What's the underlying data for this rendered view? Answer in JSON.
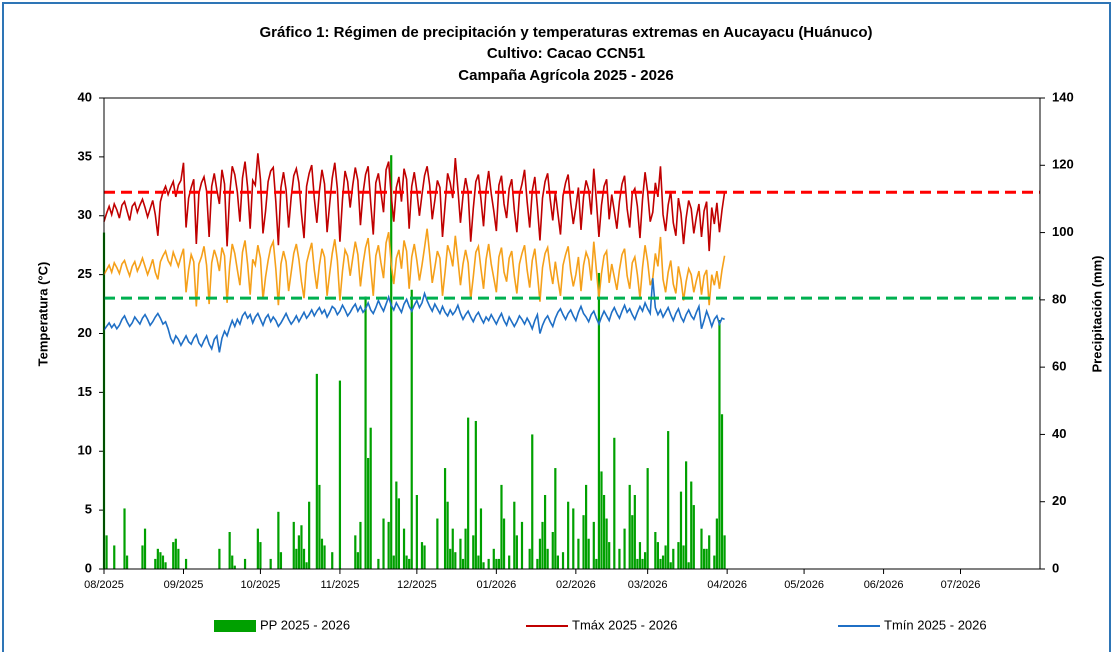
{
  "chart_data": {
    "type": "line",
    "title": [
      "Gráfico 1: Régimen de precipitación y temperaturas extremas en Aucayacu (Huánuco)",
      "Cultivo: Cacao CCN51",
      "Campaña Agrícola 2025 - 2026"
    ],
    "y_label": "Temperatura (°C)",
    "y2_label": "Precipitación (mm)",
    "xlim": [
      0,
      365
    ],
    "xticks": [
      {
        "value": 0,
        "label": "08/2025"
      },
      {
        "value": 31,
        "label": "09/2025"
      },
      {
        "value": 61,
        "label": "10/2025"
      },
      {
        "value": 92,
        "label": "11/2025"
      },
      {
        "value": 122,
        "label": "12/2025"
      },
      {
        "value": 153,
        "label": "01/2026"
      },
      {
        "value": 184,
        "label": "02/2026"
      },
      {
        "value": 212,
        "label": "03/2026"
      },
      {
        "value": 243,
        "label": "04/2026"
      },
      {
        "value": 273,
        "label": "05/2026"
      },
      {
        "value": 304,
        "label": "06/2026"
      },
      {
        "value": 334,
        "label": "07/2026"
      }
    ],
    "ylim": [
      0,
      40
    ],
    "yticks": [
      0,
      5,
      10,
      15,
      20,
      25,
      30,
      35,
      40
    ],
    "y2lim": [
      0,
      140
    ],
    "y2ticks": [
      0,
      20,
      40,
      60,
      80,
      100,
      120,
      140
    ],
    "legend": "bottom",
    "reference_lines": [
      {
        "value": 32,
        "color": "#ff0000"
      },
      {
        "value": 23,
        "color": "#00b050"
      }
    ],
    "x": [
      0,
      1,
      2,
      3,
      4,
      5,
      6,
      7,
      8,
      9,
      10,
      11,
      12,
      13,
      14,
      15,
      16,
      17,
      18,
      19,
      20,
      21,
      22,
      23,
      24,
      25,
      26,
      27,
      28,
      29,
      30,
      31,
      32,
      33,
      34,
      35,
      36,
      37,
      38,
      39,
      40,
      41,
      42,
      43,
      44,
      45,
      46,
      47,
      48,
      49,
      50,
      51,
      52,
      53,
      54,
      55,
      56,
      57,
      58,
      59,
      60,
      61,
      62,
      63,
      64,
      65,
      66,
      67,
      68,
      69,
      70,
      71,
      72,
      73,
      74,
      75,
      76,
      77,
      78,
      79,
      80,
      81,
      82,
      83,
      84,
      85,
      86,
      87,
      88,
      89,
      90,
      91,
      92,
      93,
      94,
      95,
      96,
      97,
      98,
      99,
      100,
      101,
      102,
      103,
      104,
      105,
      106,
      107,
      108,
      109,
      110,
      111,
      112,
      113,
      114,
      115,
      116,
      117,
      118,
      119,
      120,
      121,
      122,
      123,
      124,
      125,
      126,
      127,
      128,
      129,
      130,
      131,
      132,
      133,
      134,
      135,
      136,
      137,
      138,
      139,
      140,
      141,
      142,
      143,
      144,
      145,
      146,
      147,
      148,
      149,
      150,
      151,
      152,
      153,
      154,
      155,
      156,
      157,
      158,
      159,
      160,
      161,
      162,
      163,
      164,
      165,
      166,
      167,
      168,
      169,
      170,
      171,
      172,
      173,
      174,
      175,
      176,
      177,
      178,
      179,
      180,
      181,
      182,
      183,
      184,
      185,
      186,
      187,
      188,
      189,
      190,
      191,
      192,
      193,
      194,
      195,
      196,
      197,
      198,
      199,
      200,
      201,
      202,
      203,
      204,
      205,
      206,
      207,
      208,
      209,
      210,
      211,
      212,
      213,
      214,
      215,
      216,
      217,
      218,
      219,
      220,
      221,
      222,
      223,
      224,
      225,
      226,
      227,
      228,
      229,
      230,
      231,
      232,
      233,
      234,
      235,
      236,
      237,
      238,
      239,
      240,
      241,
      242
    ],
    "series": [
      {
        "name": "PP 2025 - 2026",
        "type": "bar",
        "axis": "y2",
        "color": "#00a000",
        "values": [
          100,
          10,
          0,
          0,
          7,
          0,
          0,
          0,
          18,
          4,
          0,
          0,
          0,
          0,
          0,
          7,
          12,
          0,
          0,
          0,
          3,
          6,
          5,
          4,
          2,
          0,
          0,
          8,
          9,
          6,
          0,
          0,
          3,
          0,
          0,
          0,
          0,
          0,
          0,
          0,
          0,
          0,
          0,
          0,
          0,
          6,
          0,
          0,
          0,
          11,
          4,
          1,
          0,
          0,
          0,
          3,
          0,
          0,
          0,
          0,
          12,
          8,
          0,
          0,
          0,
          3,
          0,
          0,
          17,
          5,
          0,
          0,
          0,
          0,
          14,
          6,
          10,
          13,
          6,
          2,
          20,
          0,
          0,
          58,
          25,
          9,
          7,
          0,
          0,
          5,
          0,
          0,
          56,
          0,
          0,
          0,
          0,
          0,
          10,
          5,
          14,
          0,
          81,
          33,
          42,
          0,
          0,
          3,
          0,
          15,
          0,
          14,
          123,
          4,
          26,
          21,
          0,
          12,
          4,
          3,
          83,
          0,
          22,
          0,
          8,
          7,
          0,
          0,
          0,
          0,
          15,
          0,
          0,
          30,
          20,
          6,
          12,
          5,
          0,
          9,
          3,
          12,
          45,
          0,
          10,
          44,
          4,
          18,
          2,
          0,
          3,
          0,
          6,
          3,
          3,
          25,
          15,
          0,
          4,
          0,
          20,
          10,
          0,
          14,
          0,
          0,
          6,
          40,
          0,
          3,
          9,
          14,
          22,
          6,
          0,
          11,
          30,
          4,
          0,
          5,
          0,
          20,
          0,
          18,
          0,
          9,
          0,
          16,
          25,
          9,
          0,
          14,
          3,
          88,
          29,
          22,
          15,
          8,
          0,
          39,
          0,
          6,
          0,
          12,
          0,
          25,
          16,
          22,
          3,
          8,
          3,
          5,
          30,
          0,
          0,
          11,
          8,
          3,
          4,
          7,
          41,
          2,
          6,
          0,
          8,
          23,
          7,
          32,
          2,
          26,
          19,
          0,
          0,
          12,
          6,
          6,
          10,
          0,
          4,
          15,
          74,
          46,
          10
        ]
      },
      {
        "name": "Tmáx 2025 - 2026",
        "type": "line",
        "color": "#c00000",
        "values": [
          29.5,
          30.2,
          30.8,
          30.1,
          31.0,
          30.5,
          29.8,
          30.9,
          31.2,
          30.4,
          29.6,
          30.8,
          31.1,
          30.3,
          30.9,
          31.4,
          30.7,
          29.9,
          30.6,
          31.3,
          30.1,
          28.3,
          31.2,
          32.0,
          32.5,
          31.8,
          32.4,
          32.9,
          31.6,
          32.6,
          33.0,
          34.5,
          29.0,
          31.5,
          32.4,
          33.1,
          27.6,
          31.9,
          32.8,
          33.3,
          32.1,
          28.2,
          32.5,
          33.6,
          32.2,
          31.0,
          33.9,
          32.7,
          27.4,
          31.8,
          34.2,
          33.5,
          32.0,
          29.5,
          33.2,
          34.6,
          32.4,
          28.9,
          33.0,
          32.6,
          35.3,
          33.1,
          28.5,
          30.4,
          32.9,
          33.8,
          34.1,
          31.2,
          27.5,
          32.4,
          33.7,
          32.2,
          29.0,
          31.6,
          33.4,
          34.0,
          32.8,
          30.2,
          28.1,
          32.5,
          33.6,
          34.3,
          31.5,
          29.4,
          32.1,
          33.9,
          32.7,
          28.6,
          31.0,
          33.2,
          34.5,
          32.3,
          27.8,
          31.4,
          33.8,
          32.9,
          30.7,
          32.6,
          34.1,
          33.0,
          29.2,
          31.9,
          33.5,
          34.2,
          31.1,
          28.4,
          32.8,
          33.6,
          32.0,
          30.3,
          33.9,
          34.6,
          31.7,
          29.5,
          32.4,
          33.3,
          31.2,
          34.0,
          33.1,
          28.9,
          32.5,
          33.7,
          32.1,
          30.0,
          31.8,
          33.4,
          34.2,
          32.6,
          29.7,
          31.3,
          33.0,
          32.4,
          28.2,
          30.9,
          33.6,
          32.8,
          31.5,
          34.9,
          32.3,
          29.4,
          31.7,
          33.2,
          32.0,
          27.8,
          30.6,
          32.9,
          33.5,
          31.4,
          29.1,
          32.2,
          33.8,
          31.9,
          30.4,
          28.7,
          32.6,
          33.4,
          31.0,
          29.8,
          32.3,
          33.1,
          30.5,
          28.6,
          31.8,
          32.7,
          33.9,
          31.2,
          29.0,
          32.1,
          33.3,
          30.8,
          27.9,
          31.5,
          32.9,
          33.6,
          31.4,
          29.6,
          32.0,
          30.2,
          28.4,
          31.7,
          32.8,
          33.5,
          31.1,
          29.3,
          30.7,
          32.4,
          28.8,
          31.6,
          33.0,
          32.2,
          30.1,
          34.0,
          31.3,
          28.2,
          30.9,
          32.5,
          33.1,
          29.7,
          31.8,
          30.4,
          28.9,
          31.2,
          32.7,
          33.4,
          30.6,
          29.0,
          31.9,
          32.3,
          30.8,
          28.1,
          31.4,
          33.7,
          32.0,
          29.5,
          30.3,
          32.8,
          31.6,
          34.2,
          30.1,
          28.7,
          30.9,
          32.1,
          29.4,
          28.3,
          31.5,
          30.2,
          27.6,
          29.8,
          31.3,
          30.6,
          28.5,
          29.9,
          31.0,
          28.2,
          30.4,
          31.2,
          27.0,
          30.7,
          29.3,
          31.1,
          28.6,
          30.5,
          32.0
        ]
      },
      {
        "type": "line",
        "color": "#f5a01a",
        "values": [
          25.0,
          25.4,
          25.8,
          25.2,
          26.0,
          25.6,
          25.1,
          25.9,
          26.2,
          25.5,
          24.9,
          25.7,
          26.1,
          25.3,
          25.8,
          26.4,
          25.7,
          25.0,
          25.6,
          26.3,
          25.2,
          24.6,
          26.1,
          26.6,
          27.0,
          26.2,
          25.8,
          26.9,
          26.3,
          25.7,
          26.5,
          27.2,
          23.5,
          25.4,
          26.7,
          26.1,
          22.3,
          25.9,
          26.5,
          27.4,
          25.8,
          22.5,
          26.0,
          27.1,
          26.4,
          25.3,
          27.3,
          26.6,
          22.6,
          25.7,
          27.6,
          26.8,
          25.4,
          24.1,
          26.9,
          27.9,
          25.9,
          23.3,
          26.3,
          25.8,
          27.5,
          26.4,
          22.9,
          24.8,
          26.2,
          27.3,
          27.8,
          25.5,
          22.4,
          25.9,
          27.0,
          26.1,
          23.6,
          25.2,
          26.8,
          27.6,
          26.3,
          24.4,
          23.0,
          26.0,
          26.9,
          27.7,
          25.4,
          23.8,
          25.8,
          27.2,
          26.5,
          23.2,
          25.1,
          26.8,
          28.0,
          26.2,
          22.8,
          25.3,
          27.1,
          26.6,
          24.9,
          26.4,
          27.8,
          26.7,
          24.0,
          25.9,
          27.3,
          28.1,
          25.6,
          23.2,
          26.6,
          27.5,
          26.0,
          24.7,
          27.7,
          28.6,
          25.9,
          24.2,
          26.4,
          27.1,
          25.5,
          27.9,
          27.0,
          23.8,
          26.5,
          27.6,
          26.2,
          24.5,
          25.8,
          27.3,
          28.9,
          26.7,
          24.3,
          25.6,
          27.0,
          26.4,
          23.2,
          25.2,
          27.5,
          26.8,
          25.7,
          28.3,
          26.3,
          24.1,
          25.9,
          27.1,
          26.0,
          22.9,
          24.8,
          26.9,
          27.4,
          25.5,
          23.8,
          26.3,
          27.6,
          25.9,
          24.7,
          23.5,
          26.5,
          27.3,
          25.2,
          24.4,
          26.4,
          27.0,
          24.9,
          23.4,
          25.9,
          26.8,
          27.5,
          25.4,
          23.9,
          26.2,
          27.2,
          25.1,
          22.7,
          25.6,
          26.8,
          27.3,
          25.5,
          24.2,
          26.1,
          24.6,
          23.2,
          25.8,
          26.7,
          27.4,
          25.3,
          24.0,
          25.0,
          26.5,
          23.6,
          25.8,
          26.9,
          26.3,
          24.5,
          27.8,
          25.4,
          23.0,
          25.1,
          26.6,
          27.0,
          24.3,
          25.9,
          24.8,
          23.7,
          25.4,
          26.7,
          27.2,
          24.9,
          23.8,
          26.0,
          26.5,
          25.0,
          23.0,
          25.6,
          27.5,
          26.1,
          24.1,
          24.7,
          26.8,
          25.7,
          28.2,
          24.6,
          23.5,
          25.2,
          26.2,
          24.2,
          23.4,
          25.7,
          24.6,
          22.8,
          24.4,
          25.5,
          25.0,
          23.5,
          24.5,
          25.3,
          23.3,
          24.9,
          25.4,
          22.4,
          25.0,
          24.1,
          25.3,
          23.8,
          25.4,
          26.6
        ]
      },
      {
        "name": "Tmín 2025 - 2026",
        "type": "line",
        "color": "#1f6fc5",
        "values": [
          20.3,
          20.6,
          20.9,
          20.5,
          20.8,
          20.4,
          20.7,
          21.2,
          21.5,
          21.0,
          20.6,
          20.9,
          21.4,
          21.1,
          20.8,
          21.3,
          21.6,
          21.2,
          20.7,
          21.0,
          21.4,
          21.7,
          21.3,
          20.8,
          21.0,
          20.4,
          19.6,
          19.2,
          19.8,
          19.5,
          19.0,
          19.4,
          19.8,
          19.3,
          19.1,
          19.6,
          19.9,
          19.2,
          18.9,
          19.4,
          19.8,
          19.1,
          18.7,
          19.5,
          19.8,
          18.4,
          19.6,
          20.2,
          19.8,
          20.5,
          21.1,
          20.6,
          21.2,
          20.8,
          21.5,
          21.8,
          21.3,
          21.6,
          20.9,
          21.4,
          21.7,
          21.2,
          20.7,
          21.3,
          21.6,
          21.0,
          21.4,
          21.1,
          20.6,
          20.9,
          21.3,
          21.7,
          21.2,
          20.8,
          21.1,
          21.5,
          21.0,
          21.4,
          21.8,
          21.3,
          21.6,
          22.0,
          21.5,
          21.9,
          22.2,
          21.7,
          22.0,
          21.4,
          21.8,
          22.3,
          22.1,
          21.6,
          21.9,
          22.4,
          22.0,
          21.5,
          21.8,
          22.2,
          22.5,
          21.9,
          22.3,
          21.8,
          22.1,
          22.6,
          22.0,
          21.7,
          22.2,
          22.8,
          22.3,
          21.9,
          22.5,
          23.1,
          22.4,
          22.0,
          22.6,
          22.2,
          21.8,
          22.5,
          22.9,
          22.3,
          21.9,
          22.4,
          22.8,
          22.2,
          22.6,
          23.4,
          22.8,
          22.3,
          21.9,
          22.5,
          22.1,
          21.7,
          22.3,
          21.8,
          21.5,
          22.0,
          21.6,
          21.9,
          22.4,
          21.7,
          21.2,
          21.6,
          21.9,
          21.4,
          21.0,
          21.5,
          21.8,
          21.3,
          20.9,
          21.4,
          21.1,
          21.6,
          21.2,
          20.8,
          21.3,
          21.7,
          21.1,
          20.7,
          21.4,
          21.0,
          20.6,
          21.0,
          21.5,
          21.2,
          20.8,
          21.3,
          20.9,
          20.4,
          21.1,
          21.6,
          20.0,
          20.7,
          21.2,
          21.5,
          21.0,
          20.6,
          21.3,
          21.8,
          22.1,
          21.6,
          21.2,
          21.7,
          22.0,
          21.5,
          21.1,
          21.8,
          22.3,
          21.7,
          21.4,
          21.0,
          21.6,
          21.9,
          21.3,
          20.8,
          21.4,
          21.9,
          21.5,
          21.1,
          21.8,
          22.2,
          21.7,
          21.3,
          21.9,
          22.4,
          21.8,
          22.1,
          21.6,
          21.2,
          21.8,
          22.3,
          21.9,
          22.6,
          22.1,
          21.7,
          24.7,
          22.2,
          21.6,
          22.0,
          21.4,
          21.8,
          22.2,
          21.6,
          21.1,
          21.7,
          22.1,
          21.4,
          21.0,
          21.6,
          22.0,
          21.5,
          21.2,
          21.8,
          22.3,
          20.4,
          21.1,
          21.9,
          21.3,
          20.6,
          21.2,
          21.5,
          20.8,
          21.3,
          21.2
        ]
      }
    ]
  }
}
